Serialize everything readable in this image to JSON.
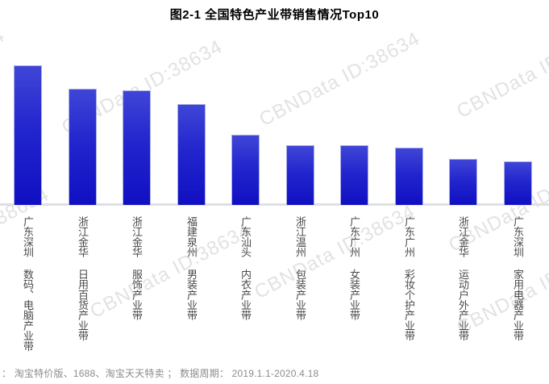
{
  "title": "图2-1 全国特色产业带销售情况Top10",
  "watermark": {
    "text": "CBNData ID:38634",
    "color": "#e2e2e2"
  },
  "footer": {
    "text": "： 淘宝特价版、1688、淘宝天天特卖 ； 数据周期： 2019.1.1-2020.4.18"
  },
  "chart_data": {
    "type": "bar",
    "title": "图2-1 全国特色产业带销售情况Top10",
    "categories": [
      "广东深圳 数码、电脑产业带",
      "浙江金华 日用百货产业带",
      "浙江金华 服饰产业带",
      "福建泉州 男装产业带",
      "广东汕头 内衣产业带",
      "浙江温州 包装产业带",
      "广东广州 女装产业带",
      "广东广州 彩妆个护产业带",
      "浙江金华 运动户外产业带",
      "广东深圳 家用电器产业带"
    ],
    "values": [
      100,
      83,
      82,
      72,
      50,
      43,
      43,
      41,
      33,
      31
    ],
    "values_estimated": true,
    "value_axis_visible": false,
    "xlabel": "",
    "ylabel": "",
    "ylim": [
      0,
      100
    ],
    "grid": false,
    "legend": false,
    "bar_color_top": "#4045d7",
    "bar_color_bottom": "#100fc2",
    "baseline_color": "#dde0e4",
    "footnote": "： 淘宝特价版、1688、淘宝天天特卖 ； 数据周期： 2019.1.1-2020.4.18"
  }
}
